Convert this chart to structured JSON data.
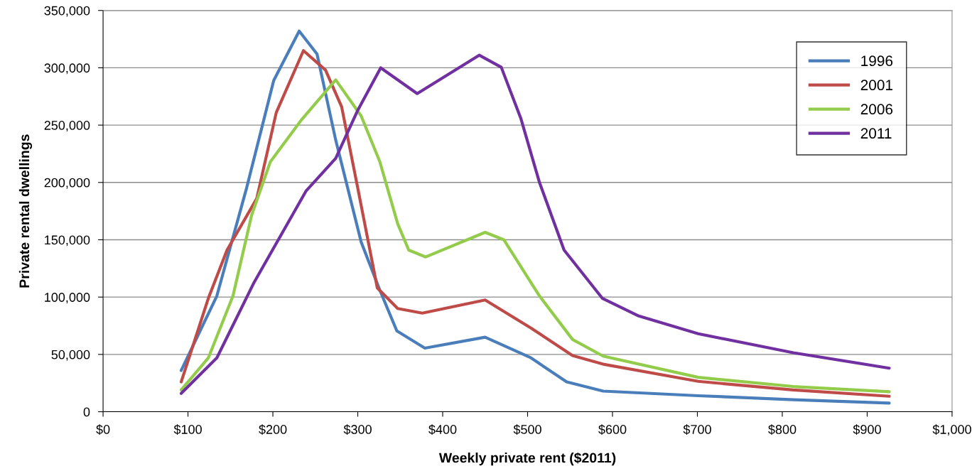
{
  "chart_data": {
    "type": "line",
    "xlabel": "Weekly private rent ($2011)",
    "ylabel": "Private rental dwellings",
    "xlim": [
      0,
      1000
    ],
    "xticks": [
      {
        "value": 0,
        "label": "$0"
      },
      {
        "value": 100,
        "label": "$100"
      },
      {
        "value": 200,
        "label": "$200"
      },
      {
        "value": 300,
        "label": "$300"
      },
      {
        "value": 400,
        "label": "$400"
      },
      {
        "value": 500,
        "label": "$500"
      },
      {
        "value": 600,
        "label": "$600"
      },
      {
        "value": 700,
        "label": "$700"
      },
      {
        "value": 800,
        "label": "$800"
      },
      {
        "value": 900,
        "label": "$900"
      },
      {
        "value": 1000,
        "label": "$1,000"
      }
    ],
    "ylim": [
      0,
      350000
    ],
    "yticks": [
      0,
      {
        "value": 50000,
        "label": "50,000"
      },
      {
        "value": 100000,
        "label": "100,000"
      },
      {
        "value": 150000,
        "label": "150,000"
      },
      {
        "value": 200000,
        "label": "200,000"
      },
      {
        "value": 250000,
        "label": "250,000"
      },
      {
        "value": 300000,
        "label": "300,000"
      },
      {
        "value": 350000,
        "label": "350,000"
      }
    ],
    "grid": "y",
    "legend": "top right",
    "marker": "none",
    "line_style": "solid",
    "series": [
      {
        "name": "1996",
        "color": "#4a7ebb",
        "x": [
          92,
          134,
          169,
          201,
          231,
          252,
          274,
          304,
          326,
          346,
          379,
          450,
          504,
          546,
          589,
          701,
          813,
          926
        ],
        "values": [
          36000,
          101000,
          195000,
          289000,
          332000,
          312000,
          237000,
          148000,
          106000,
          70500,
          55500,
          65000,
          47000,
          26000,
          18000,
          14000,
          10500,
          7500
        ]
      },
      {
        "name": "2001",
        "color": "#be4b48",
        "x": [
          92,
          124,
          146,
          181,
          204,
          236,
          262,
          281,
          300,
          323,
          347,
          376,
          450,
          504,
          553,
          589,
          701,
          813,
          926
        ],
        "values": [
          26000,
          99000,
          141000,
          186000,
          261000,
          315000,
          298000,
          266000,
          195000,
          108000,
          90000,
          86000,
          97500,
          73000,
          49000,
          41500,
          26500,
          19000,
          13500
        ]
      },
      {
        "name": "2006",
        "color": "#92cc4a",
        "x": [
          92,
          124,
          153,
          175,
          197,
          233,
          274,
          304,
          326,
          347,
          360,
          380,
          450,
          472,
          514,
          553,
          589,
          701,
          813,
          926
        ],
        "values": [
          19000,
          47000,
          101000,
          171500,
          218000,
          254000,
          289500,
          258000,
          218000,
          164000,
          141000,
          135000,
          156500,
          150000,
          101000,
          63000,
          48500,
          30000,
          22000,
          17500
        ]
      },
      {
        "name": "2011",
        "color": "#7030a0",
        "x": [
          92,
          134,
          178,
          239,
          274,
          300,
          327,
          370,
          443,
          469,
          492,
          514,
          543,
          588,
          631,
          701,
          813,
          926
        ],
        "values": [
          16000,
          47000,
          113000,
          192500,
          221000,
          263000,
          300000,
          277500,
          311000,
          300500,
          256000,
          200000,
          141000,
          99000,
          83500,
          68000,
          51500,
          38000
        ]
      }
    ]
  }
}
